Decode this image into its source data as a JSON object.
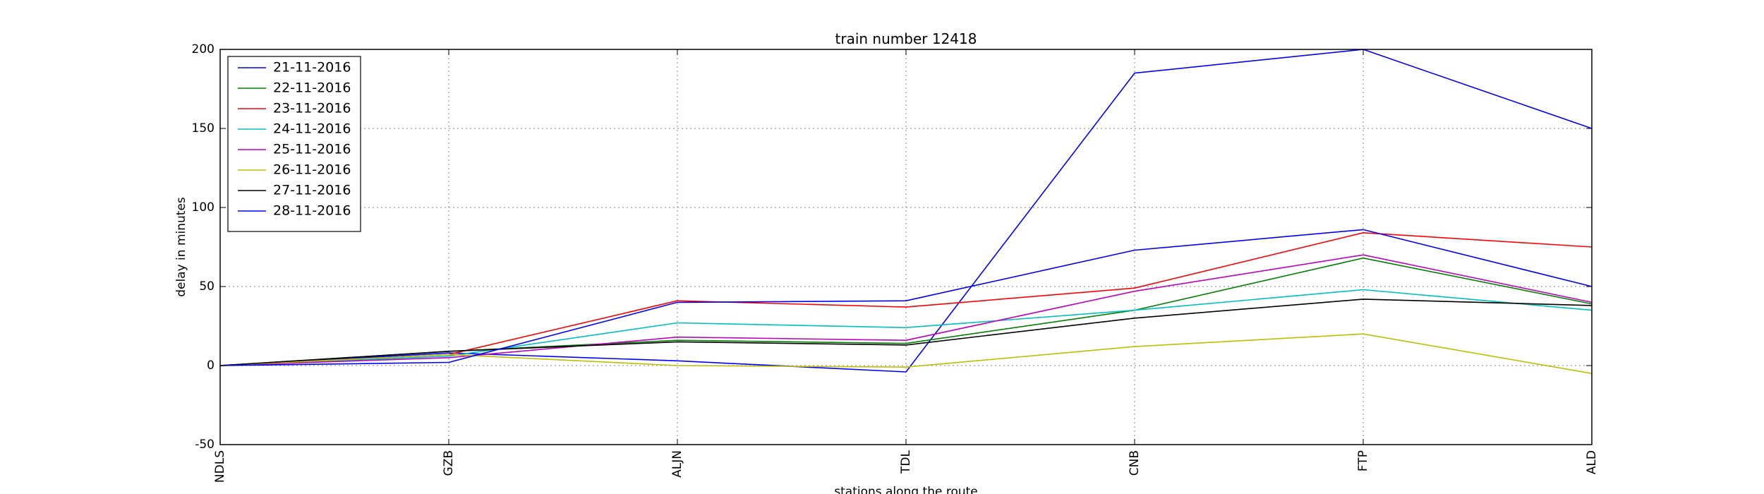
{
  "chart_data": {
    "type": "line",
    "title": "train number 12418",
    "xlabel": "stations along the route",
    "ylabel": "delay in minutes",
    "categories": [
      "NDLS",
      "GZB",
      "ALJN",
      "TDL",
      "CNB",
      "FTP",
      "ALD"
    ],
    "ylim": [
      -50,
      200
    ],
    "yticks": [
      -50,
      0,
      50,
      100,
      150,
      200
    ],
    "grid": true,
    "legend_position": "top-left",
    "series": [
      {
        "name": "21-11-2016",
        "color": "#0000ff",
        "values": [
          0,
          8,
          3,
          -4,
          185,
          200,
          150
        ]
      },
      {
        "name": "22-11-2016",
        "color": "#008000",
        "values": [
          0,
          9,
          16,
          14,
          35,
          68,
          39
        ]
      },
      {
        "name": "23-11-2016",
        "color": "#ff0000",
        "values": [
          0,
          7,
          41,
          37,
          49,
          84,
          75
        ]
      },
      {
        "name": "24-11-2016",
        "color": "#00bfbf",
        "values": [
          0,
          6,
          27,
          24,
          35,
          48,
          35
        ]
      },
      {
        "name": "25-11-2016",
        "color": "#bf00bf",
        "values": [
          0,
          5,
          18,
          16,
          47,
          70,
          40
        ]
      },
      {
        "name": "26-11-2016",
        "color": "#bfbf00",
        "values": [
          0,
          7,
          0,
          -1,
          12,
          20,
          -5
        ]
      },
      {
        "name": "27-11-2016",
        "color": "#000000",
        "values": [
          0,
          9,
          15,
          13,
          30,
          42,
          38
        ]
      },
      {
        "name": "28-11-2016",
        "color": "#0000ff",
        "values": [
          0,
          2,
          40,
          41,
          73,
          86,
          50
        ]
      }
    ]
  }
}
